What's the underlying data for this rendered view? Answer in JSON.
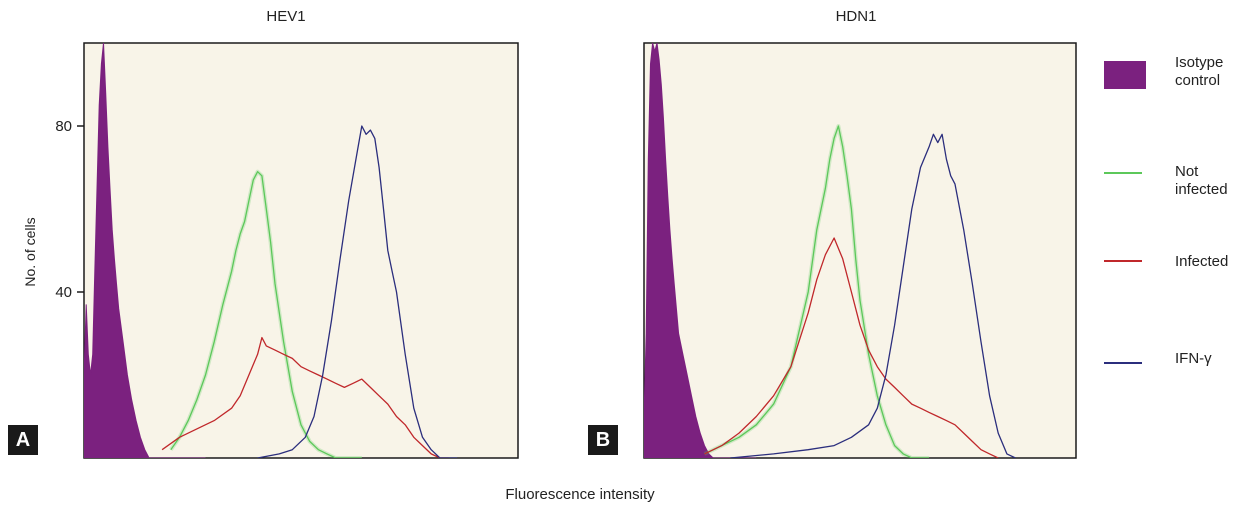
{
  "figure": {
    "xlabel": "Fluorescence intensity",
    "ylabel": "No. of cells"
  },
  "legend": [
    {
      "label": "Isotype control",
      "color": "#7b217f",
      "kind": "fill"
    },
    {
      "label": "Not infected",
      "color": "#5cc85a",
      "kind": "line"
    },
    {
      "label": "Infected",
      "color": "#c0282b",
      "kind": "line"
    },
    {
      "label": "IFN-γ",
      "color": "#2b2e7d",
      "kind": "line"
    }
  ],
  "chart_data": [
    {
      "type": "area",
      "title": "HEV1",
      "panel": "A",
      "ylabel": "No. of cells",
      "yticks": [
        40,
        80
      ],
      "ylim": [
        0,
        100
      ],
      "series": [
        {
          "name": "Isotype control",
          "fill": true,
          "x": [
            0,
            0.5,
            1,
            1.5,
            2,
            2.5,
            3,
            3.5,
            4,
            4.5,
            5,
            5.5,
            6,
            6.5,
            7,
            7.5,
            8,
            9,
            10,
            11,
            12,
            13,
            14,
            15,
            16,
            18,
            20,
            22,
            24,
            26,
            28
          ],
          "y": [
            20,
            37,
            25,
            20,
            25,
            45,
            65,
            85,
            95,
            100,
            88,
            75,
            65,
            55,
            48,
            42,
            36,
            28,
            20,
            14,
            9,
            5,
            2,
            0,
            0,
            0,
            0,
            0,
            0,
            0,
            0
          ]
        },
        {
          "name": "Not infected",
          "x": [
            20,
            22,
            24,
            26,
            28,
            30,
            32,
            34,
            35,
            36,
            37,
            38,
            39,
            40,
            41,
            42,
            43,
            44,
            46,
            48,
            50,
            52,
            54,
            56,
            58,
            60,
            62,
            64
          ],
          "y": [
            2,
            5,
            9,
            14,
            20,
            28,
            37,
            45,
            50,
            54,
            57,
            62,
            67,
            69,
            68,
            60,
            52,
            42,
            28,
            16,
            8,
            4,
            2,
            1,
            0,
            0,
            0,
            0
          ]
        },
        {
          "name": "Infected",
          "x": [
            18,
            22,
            26,
            30,
            34,
            36,
            38,
            40,
            41,
            42,
            44,
            46,
            48,
            50,
            52,
            54,
            56,
            58,
            60,
            62,
            64,
            66,
            68,
            70,
            72,
            74,
            76,
            78,
            80,
            82,
            84
          ],
          "y": [
            2,
            5,
            7,
            9,
            12,
            15,
            20,
            25,
            29,
            27,
            26,
            25,
            24,
            22,
            21,
            20,
            19,
            18,
            17,
            18,
            19,
            17,
            15,
            13,
            10,
            8,
            5,
            3,
            1,
            0,
            0
          ]
        },
        {
          "name": "IFN-γ",
          "x": [
            40,
            45,
            48,
            51,
            53,
            55,
            57,
            59,
            61,
            63,
            64,
            65,
            66,
            67,
            68,
            69,
            70,
            71,
            72,
            74,
            76,
            78,
            80,
            82,
            84,
            86
          ],
          "y": [
            0,
            1,
            2,
            5,
            10,
            20,
            33,
            48,
            62,
            74,
            80,
            78,
            79,
            77,
            70,
            60,
            50,
            45,
            40,
            25,
            12,
            5,
            2,
            0,
            0,
            0
          ]
        }
      ]
    },
    {
      "type": "area",
      "title": "HDN1",
      "panel": "B",
      "ylim": [
        0,
        100
      ],
      "series": [
        {
          "name": "Isotype control",
          "fill": true,
          "x": [
            0,
            0.5,
            1,
            1.5,
            2,
            2.5,
            3,
            3.5,
            4,
            4.5,
            5,
            5.5,
            6,
            6.5,
            7,
            7.5,
            8,
            9,
            10,
            11,
            12,
            13,
            14,
            15,
            16,
            18,
            20,
            22,
            24,
            26
          ],
          "y": [
            10,
            30,
            72,
            95,
            100,
            98,
            100,
            96,
            90,
            82,
            72,
            63,
            55,
            48,
            42,
            36,
            30,
            25,
            20,
            15,
            10,
            6,
            3,
            1,
            0,
            0,
            0,
            0,
            0,
            0
          ]
        },
        {
          "name": "Not infected",
          "x": [
            14,
            18,
            22,
            26,
            30,
            34,
            38,
            40,
            42,
            43,
            44,
            45,
            46,
            47,
            48,
            49,
            50,
            52,
            54,
            56,
            58,
            60,
            62,
            64,
            66
          ],
          "y": [
            1,
            3,
            5,
            8,
            13,
            22,
            40,
            55,
            65,
            72,
            77,
            80,
            75,
            68,
            60,
            48,
            38,
            25,
            15,
            8,
            3,
            1,
            0,
            0,
            0
          ]
        },
        {
          "name": "Infected",
          "x": [
            14,
            18,
            22,
            26,
            30,
            34,
            38,
            40,
            42,
            44,
            46,
            48,
            50,
            52,
            54,
            56,
            58,
            60,
            62,
            64,
            66,
            68,
            70,
            72,
            74,
            76,
            78,
            80,
            82
          ],
          "y": [
            1,
            3,
            6,
            10,
            15,
            22,
            35,
            43,
            49,
            53,
            48,
            40,
            32,
            26,
            22,
            19,
            17,
            15,
            13,
            12,
            11,
            10,
            9,
            8,
            6,
            4,
            2,
            1,
            0
          ]
        },
        {
          "name": "IFN-γ",
          "x": [
            20,
            30,
            38,
            44,
            48,
            52,
            54,
            56,
            58,
            60,
            62,
            64,
            66,
            67,
            68,
            69,
            70,
            71,
            72,
            74,
            76,
            78,
            80,
            82,
            84,
            86
          ],
          "y": [
            0,
            1,
            2,
            3,
            5,
            8,
            12,
            20,
            32,
            46,
            60,
            70,
            75,
            78,
            76,
            78,
            72,
            68,
            66,
            55,
            42,
            28,
            15,
            6,
            1,
            0
          ]
        }
      ]
    }
  ]
}
